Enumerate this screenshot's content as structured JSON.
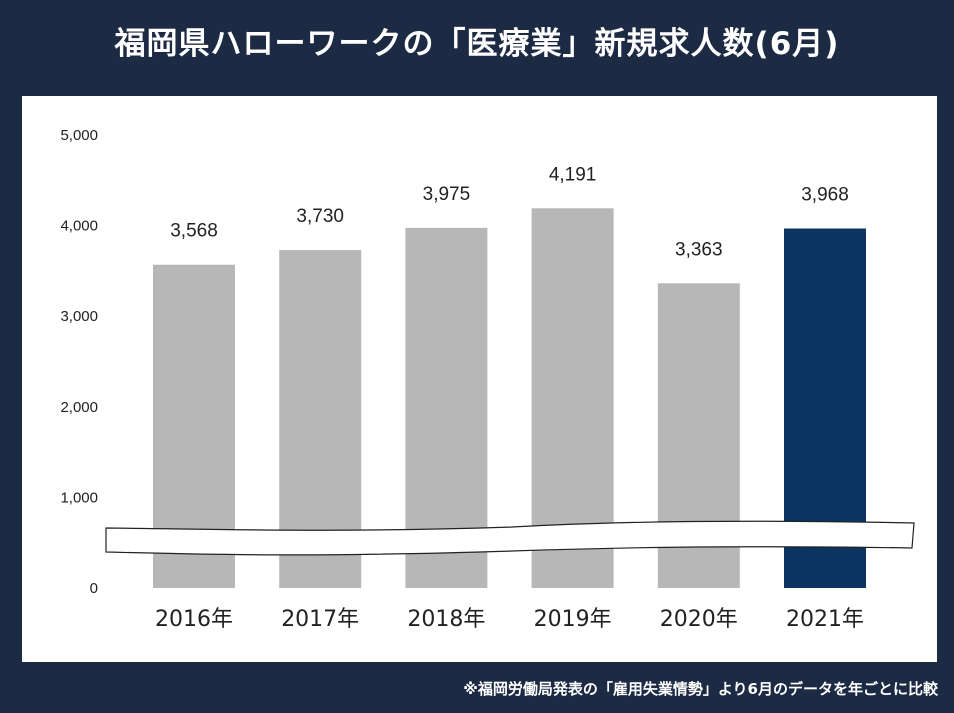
{
  "title": "福岡県ハローワークの「医療業」新規求人数(6月)",
  "footnote": "※福岡労働局発表の「雇用失業情勢」より6月のデータを年ごとに比較",
  "chart_data": {
    "type": "bar",
    "title": "福岡県ハローワークの「医療業」新規求人数(6月)",
    "categories": [
      "2016年",
      "2017年",
      "2018年",
      "2019年",
      "2020年",
      "2021年"
    ],
    "values": [
      3568,
      3730,
      3975,
      4191,
      3363,
      3968
    ],
    "value_labels": [
      "3,568",
      "3,730",
      "3,975",
      "4,191",
      "3,363",
      "3,968"
    ],
    "y_ticks": [
      0,
      1000,
      2000,
      3000,
      4000,
      5000
    ],
    "y_tick_labels": [
      "0",
      "1,000",
      "2,000",
      "3,000",
      "4,000",
      "5,000"
    ],
    "ylim": [
      0,
      5000
    ],
    "xlabel": "",
    "ylabel": "",
    "grid": false,
    "axis_break": true,
    "colors": {
      "default": "#b7b7b7",
      "highlight": "#0b3460"
    },
    "highlight_index": 5
  }
}
